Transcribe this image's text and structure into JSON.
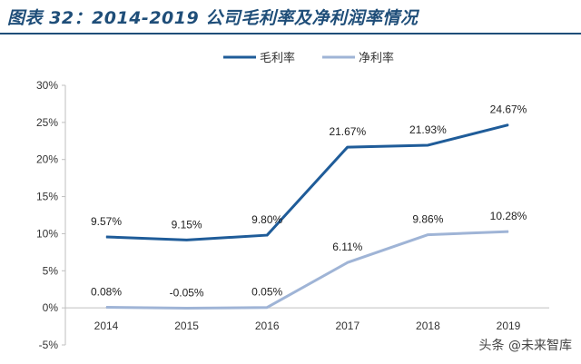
{
  "header": {
    "title": "图表 32：2014-2019 公司毛利率及净利润率情况"
  },
  "watermark": {
    "text": "头条 @未来智库"
  },
  "chart_data": {
    "type": "line",
    "title": "",
    "xlabel": "",
    "ylabel": "",
    "categories": [
      "2014",
      "2015",
      "2016",
      "2017",
      "2018",
      "2019"
    ],
    "ylim": [
      -5,
      30
    ],
    "yticks": [
      "-5%",
      "0%",
      "5%",
      "10%",
      "15%",
      "20%",
      "25%",
      "30%"
    ],
    "ytick_values": [
      -5,
      0,
      5,
      10,
      15,
      20,
      25,
      30
    ],
    "grid": false,
    "legend_position": "top-center",
    "series": [
      {
        "name": "毛利率",
        "color": "#1f5c99",
        "values": [
          9.57,
          9.15,
          9.8,
          21.67,
          21.93,
          24.67
        ],
        "labels": [
          "9.57%",
          "9.15%",
          "9.80%",
          "21.67%",
          "21.93%",
          "24.67%"
        ]
      },
      {
        "name": "净利率",
        "color": "#9fb4d6",
        "values": [
          0.08,
          -0.05,
          0.05,
          6.11,
          9.86,
          10.28
        ],
        "labels": [
          "0.08%",
          "-0.05%",
          "0.05%",
          "6.11%",
          "9.86%",
          "10.28%"
        ]
      }
    ]
  }
}
